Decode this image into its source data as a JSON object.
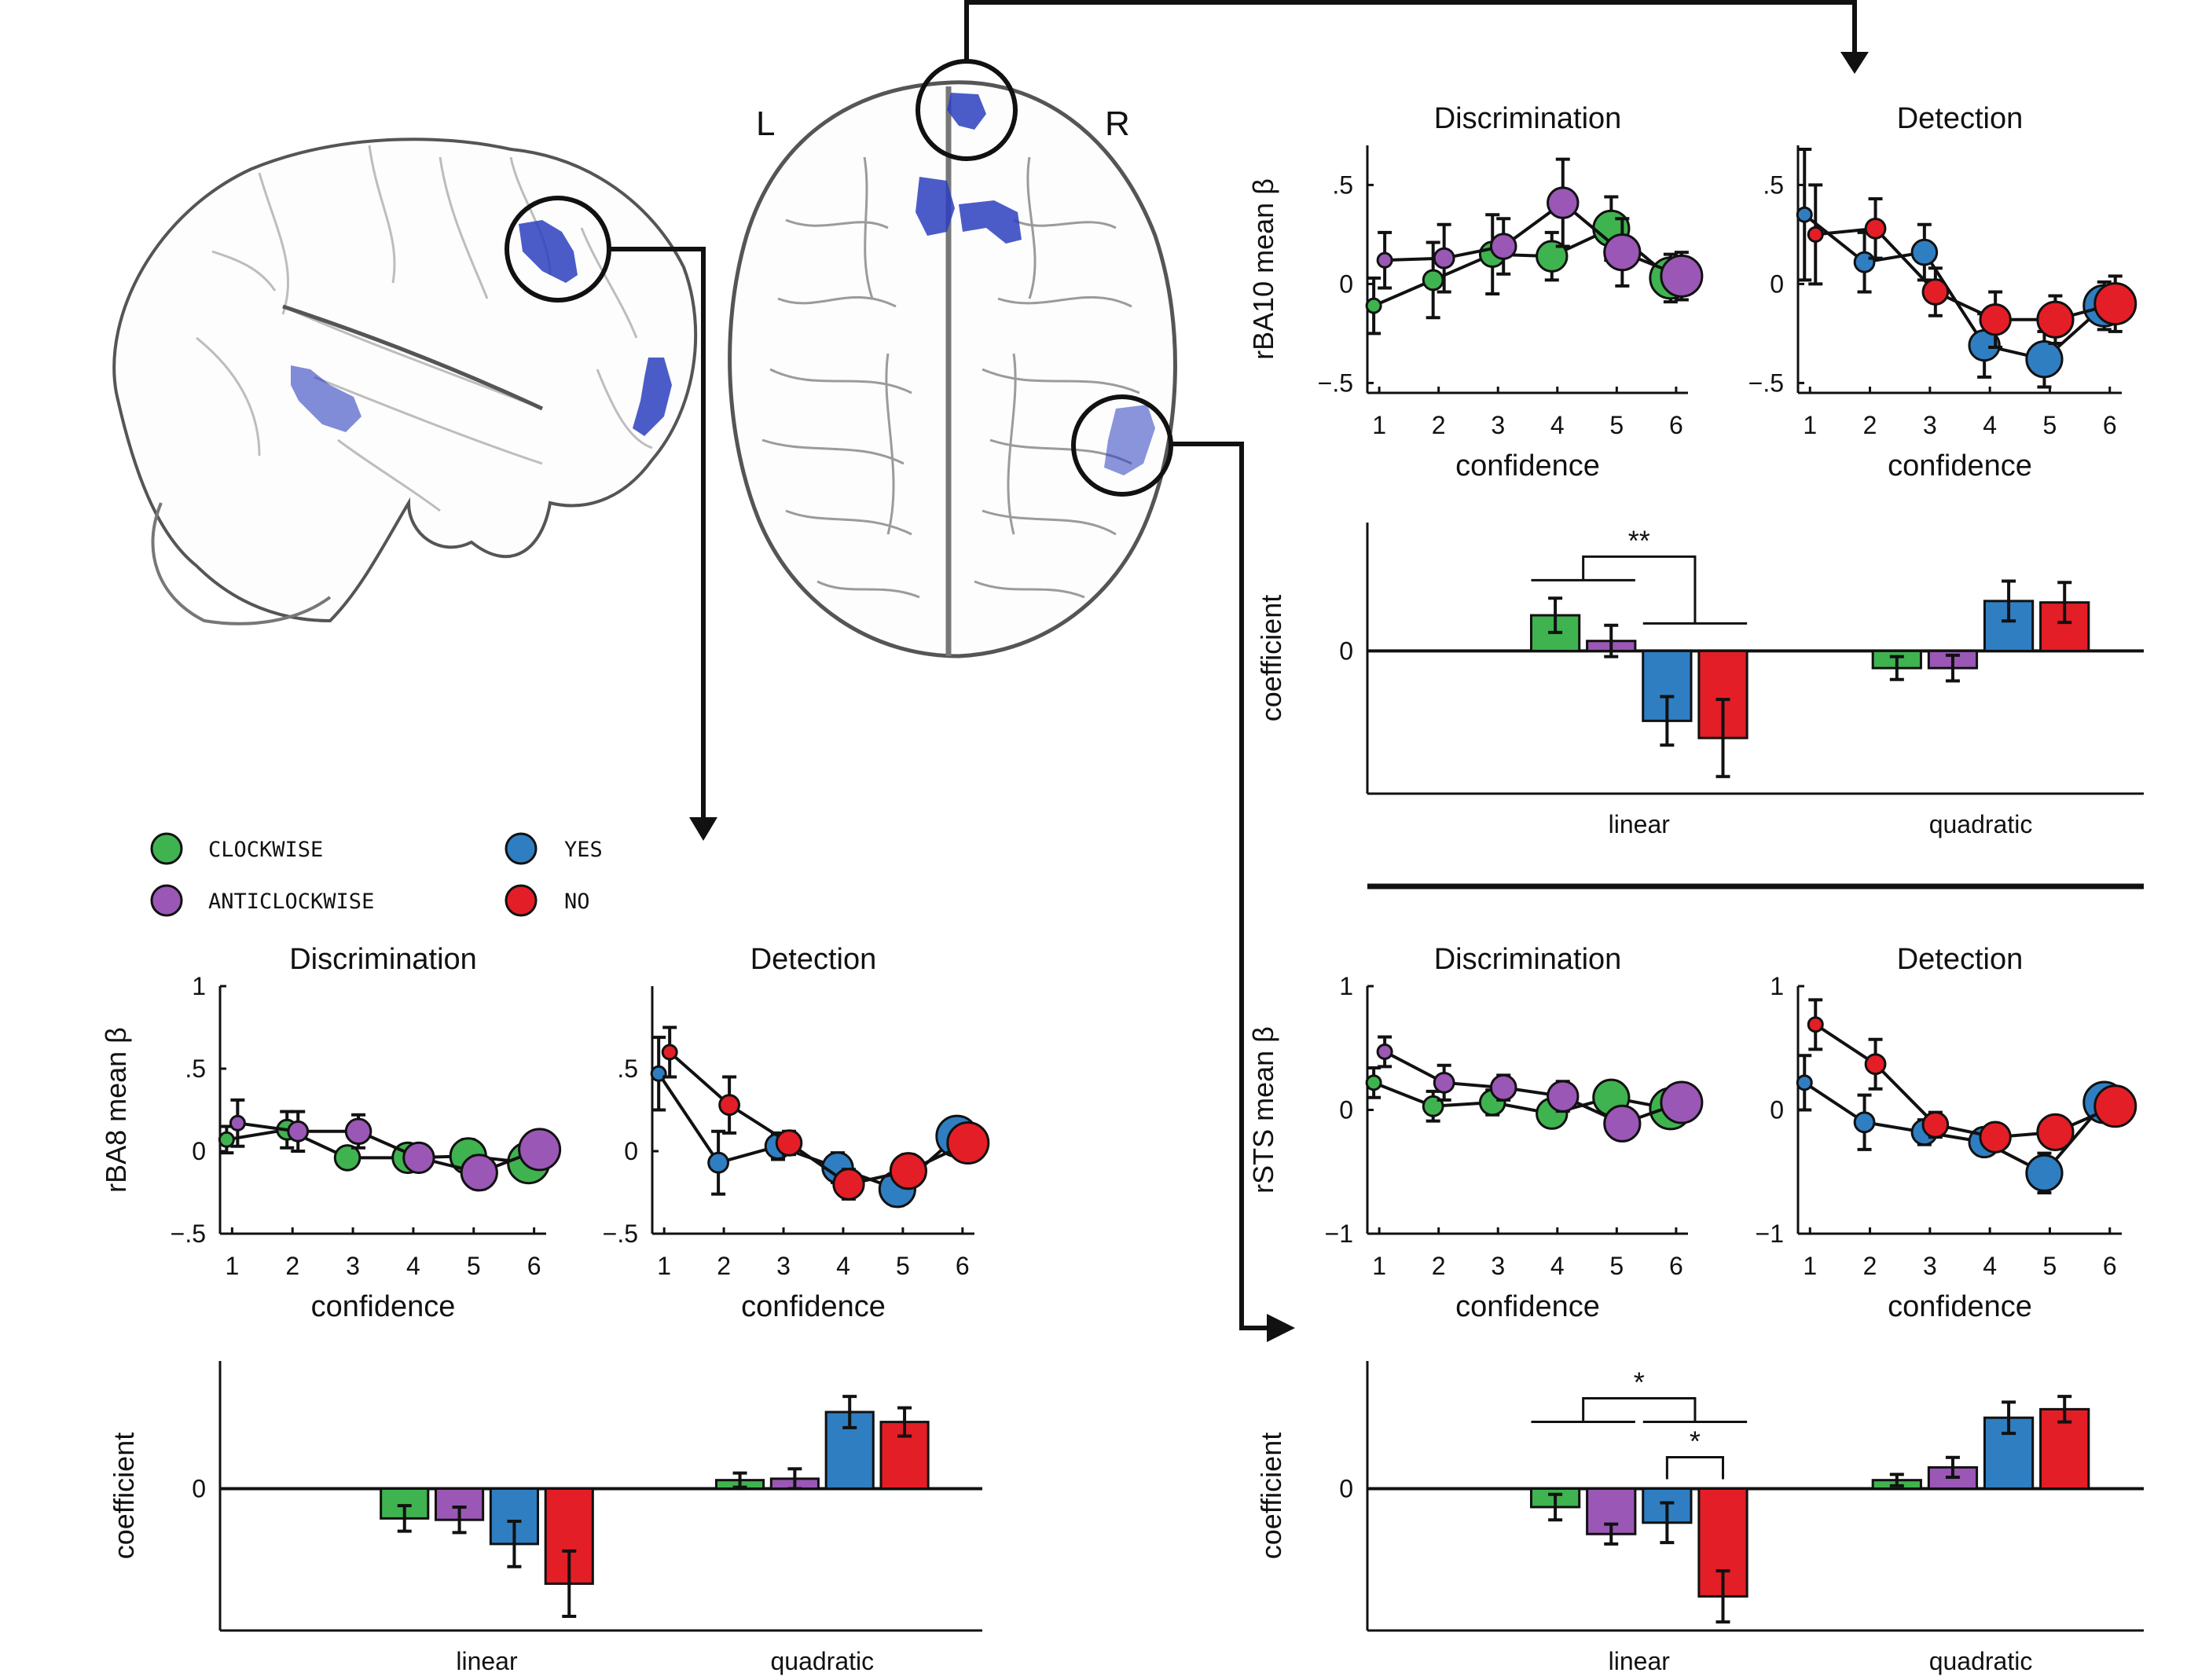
{
  "colors": {
    "clockwise": "#3fb34f",
    "anticlockwise": "#9a57b5",
    "yes": "#2f7ec2",
    "no": "#e41e26",
    "blob": "#2b3fbf"
  },
  "brain": {
    "left_label": "L",
    "right_label": "R"
  },
  "legend": {
    "clockwise": "CLOCKWISE",
    "anticlockwise": "ANTICLOCKWISE",
    "yes": "YES",
    "no": "NO"
  },
  "chart_data": [
    {
      "id": "rba10-discrimination",
      "type": "line",
      "title": "Discrimination",
      "xlabel": "confidence",
      "ylabel": "rBA10 mean β",
      "x": [
        1,
        2,
        3,
        4,
        5,
        6
      ],
      "ylim": [
        -0.55,
        0.7
      ],
      "yticks": [
        -0.5,
        0,
        0.5
      ],
      "series": [
        {
          "key": "clockwise",
          "values": [
            -0.11,
            0.02,
            0.15,
            0.14,
            0.28,
            0.03
          ],
          "err": [
            0.14,
            0.19,
            0.2,
            0.12,
            0.16,
            0.12
          ]
        },
        {
          "key": "anticlockwise",
          "values": [
            0.12,
            0.13,
            0.19,
            0.41,
            0.16,
            0.04
          ],
          "err": [
            0.14,
            0.17,
            0.14,
            0.22,
            0.17,
            0.12
          ]
        }
      ]
    },
    {
      "id": "rba10-detection",
      "type": "line",
      "title": "Detection",
      "xlabel": "confidence",
      "ylabel": "",
      "x": [
        1,
        2,
        3,
        4,
        5,
        6
      ],
      "ylim": [
        -0.55,
        0.7
      ],
      "yticks": [
        -0.5,
        0,
        0.5
      ],
      "series": [
        {
          "key": "yes",
          "values": [
            0.35,
            0.11,
            0.16,
            -0.31,
            -0.38,
            -0.11
          ],
          "err": [
            0.33,
            0.15,
            0.14,
            0.16,
            0.14,
            0.12
          ]
        },
        {
          "key": "no",
          "values": [
            0.25,
            0.28,
            -0.04,
            -0.18,
            -0.18,
            -0.1
          ],
          "err": [
            0.25,
            0.15,
            0.12,
            0.14,
            0.12,
            0.14
          ]
        }
      ]
    },
    {
      "id": "rba10-coefficients",
      "type": "bar",
      "ylabel": "coefficient",
      "categories": [
        "linear",
        "quadratic"
      ],
      "ylim": [
        -1.0,
        0.9
      ],
      "series": [
        {
          "key": "clockwise",
          "values": [
            0.25,
            -0.12
          ],
          "err": [
            0.12,
            0.08
          ]
        },
        {
          "key": "anticlockwise",
          "values": [
            0.07,
            -0.12
          ],
          "err": [
            0.11,
            0.09
          ]
        },
        {
          "key": "yes",
          "values": [
            -0.49,
            0.35
          ],
          "err": [
            0.17,
            0.14
          ]
        },
        {
          "key": "no",
          "values": [
            -0.61,
            0.34
          ],
          "err": [
            0.27,
            0.14
          ]
        }
      ],
      "annotations": [
        {
          "text": "**",
          "group": "linear",
          "from": [
            0,
            1
          ],
          "to": [
            2,
            3
          ]
        }
      ]
    },
    {
      "id": "rba8-discrimination",
      "type": "line",
      "title": "Discrimination",
      "xlabel": "confidence",
      "ylabel": "rBA8 mean β",
      "x": [
        1,
        2,
        3,
        4,
        5,
        6
      ],
      "ylim": [
        -0.5,
        1.0
      ],
      "yticks": [
        -0.5,
        0,
        0.5,
        1
      ],
      "series": [
        {
          "key": "clockwise",
          "values": [
            0.07,
            0.13,
            -0.04,
            -0.04,
            -0.03,
            -0.07
          ],
          "err": [
            0.08,
            0.11,
            0.06,
            0.07,
            0.1,
            0.06
          ]
        },
        {
          "key": "anticlockwise",
          "values": [
            0.17,
            0.12,
            0.12,
            -0.04,
            -0.13,
            0.01
          ],
          "err": [
            0.14,
            0.12,
            0.1,
            0.07,
            0.1,
            0.06
          ]
        }
      ]
    },
    {
      "id": "rba8-detection",
      "type": "line",
      "title": "Detection",
      "xlabel": "confidence",
      "ylabel": "",
      "x": [
        1,
        2,
        3,
        4,
        5,
        6
      ],
      "ylim": [
        -0.5,
        1.0
      ],
      "yticks": [
        -0.5,
        0,
        0.5
      ],
      "series": [
        {
          "key": "yes",
          "values": [
            0.47,
            -0.07,
            0.03,
            -0.1,
            -0.23,
            0.09
          ],
          "err": [
            0.22,
            0.19,
            0.08,
            0.09,
            0.1,
            0.1
          ]
        },
        {
          "key": "no",
          "values": [
            0.6,
            0.28,
            0.05,
            -0.2,
            -0.12,
            0.05
          ],
          "err": [
            0.15,
            0.17,
            0.07,
            0.09,
            0.1,
            0.11
          ]
        }
      ]
    },
    {
      "id": "rba8-coefficients",
      "type": "bar",
      "ylabel": "coefficient",
      "categories": [
        "linear",
        "quadratic"
      ],
      "ylim": [
        -1.0,
        0.9
      ],
      "series": [
        {
          "key": "clockwise",
          "values": [
            -0.21,
            0.06
          ],
          "err": [
            0.09,
            0.05
          ]
        },
        {
          "key": "anticlockwise",
          "values": [
            -0.22,
            0.07
          ],
          "err": [
            0.09,
            0.07
          ]
        },
        {
          "key": "yes",
          "values": [
            -0.39,
            0.54
          ],
          "err": [
            0.16,
            0.11
          ]
        },
        {
          "key": "no",
          "values": [
            -0.67,
            0.47
          ],
          "err": [
            0.23,
            0.1
          ]
        }
      ]
    },
    {
      "id": "rsts-discrimination",
      "type": "line",
      "title": "Discrimination",
      "xlabel": "confidence",
      "ylabel": "rSTS mean β",
      "x": [
        1,
        2,
        3,
        4,
        5,
        6
      ],
      "ylim": [
        -1.0,
        1.0
      ],
      "yticks": [
        -1,
        0,
        1
      ],
      "series": [
        {
          "key": "clockwise",
          "values": [
            0.22,
            0.03,
            0.06,
            -0.03,
            0.1,
            0.01
          ],
          "err": [
            0.12,
            0.12,
            0.1,
            0.08,
            0.1,
            0.08
          ]
        },
        {
          "key": "anticlockwise",
          "values": [
            0.47,
            0.22,
            0.18,
            0.11,
            -0.11,
            0.06
          ],
          "err": [
            0.12,
            0.14,
            0.1,
            0.12,
            0.12,
            0.09
          ]
        }
      ]
    },
    {
      "id": "rsts-detection",
      "type": "line",
      "title": "Detection",
      "xlabel": "confidence",
      "ylabel": "",
      "x": [
        1,
        2,
        3,
        4,
        5,
        6
      ],
      "ylim": [
        -1.0,
        1.0
      ],
      "yticks": [
        -1,
        0,
        1
      ],
      "series": [
        {
          "key": "yes",
          "values": [
            0.22,
            -0.1,
            -0.18,
            -0.26,
            -0.51,
            0.06
          ],
          "err": [
            0.22,
            0.22,
            0.1,
            0.08,
            0.16,
            0.12
          ]
        },
        {
          "key": "no",
          "values": [
            0.69,
            0.37,
            -0.12,
            -0.22,
            -0.18,
            0.03
          ],
          "err": [
            0.2,
            0.2,
            0.1,
            0.1,
            0.1,
            0.13
          ]
        }
      ]
    },
    {
      "id": "rsts-coefficients",
      "type": "bar",
      "ylabel": "coefficient",
      "categories": [
        "linear",
        "quadratic"
      ],
      "ylim": [
        -1.0,
        0.9
      ],
      "series": [
        {
          "key": "clockwise",
          "values": [
            -0.13,
            0.06
          ],
          "err": [
            0.09,
            0.04
          ]
        },
        {
          "key": "anticlockwise",
          "values": [
            -0.32,
            0.15
          ],
          "err": [
            0.07,
            0.07
          ]
        },
        {
          "key": "yes",
          "values": [
            -0.24,
            0.5
          ],
          "err": [
            0.14,
            0.11
          ]
        },
        {
          "key": "no",
          "values": [
            -0.76,
            0.56
          ],
          "err": [
            0.18,
            0.09
          ]
        }
      ],
      "annotations": [
        {
          "text": "*",
          "group": "linear",
          "from": [
            0,
            1
          ],
          "to": [
            2,
            3
          ]
        },
        {
          "text": "*",
          "group": "linear",
          "from": [
            2
          ],
          "to": [
            3
          ]
        }
      ]
    }
  ]
}
